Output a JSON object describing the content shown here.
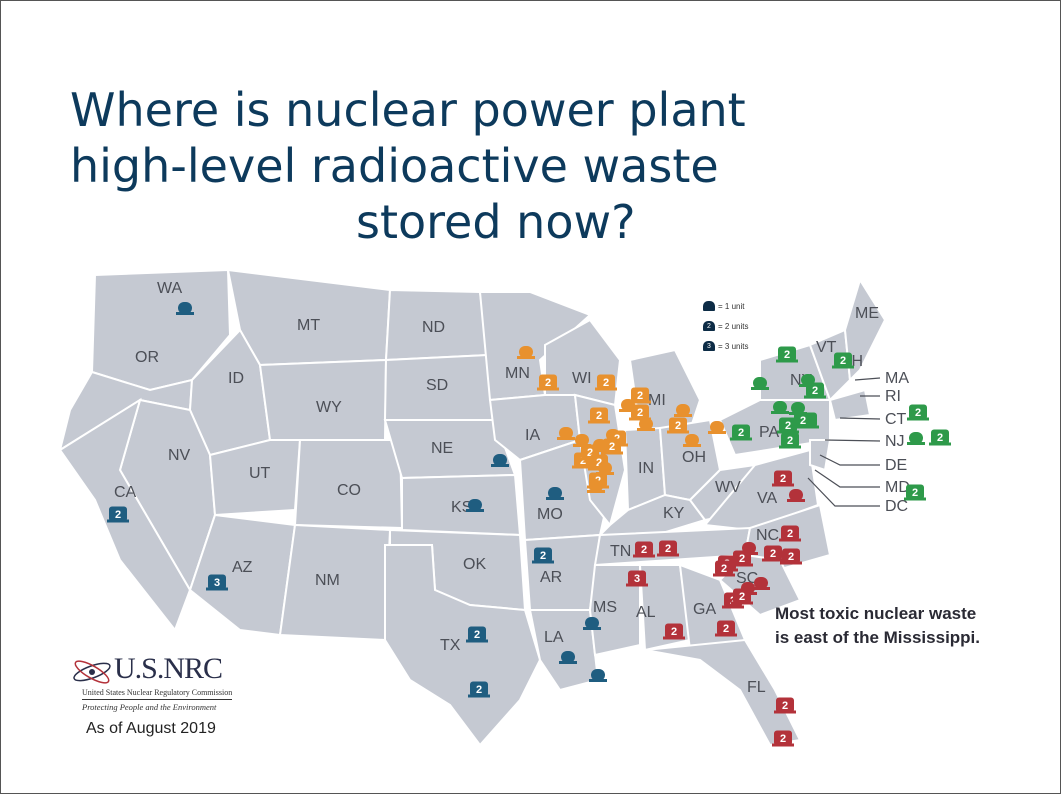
{
  "title": {
    "line1": "Where is nuclear power plant",
    "line2": "high-level radioactive waste",
    "line3": "stored now?"
  },
  "legend": {
    "one": "= 1 unit",
    "two": "= 2 units",
    "three": "= 3 units"
  },
  "note": {
    "line1": "Most toxic nuclear waste",
    "line2": "is east of the Mississippi."
  },
  "logo": {
    "name": "U.S.NRC",
    "subtitle": "United States Nuclear Regulatory Commission",
    "tagline": "Protecting People and the Environment"
  },
  "as_of": "As of August 2019",
  "colors": {
    "west": "#1f5d80",
    "midwest": "#e8912e",
    "northeast": "#2e9a4a",
    "southeast": "#b3323a",
    "land": "#c5c9d2",
    "title": "#0d3a5c"
  },
  "state_labels": [
    "WA",
    "MT",
    "ND",
    "OR",
    "ID",
    "SD",
    "MN",
    "WI",
    "MI",
    "WY",
    "IA",
    "NV",
    "NE",
    "IL",
    "IN",
    "OH",
    "UT",
    "CO",
    "CA",
    "KS",
    "MO",
    "KY",
    "WV",
    "VA",
    "TN",
    "NC",
    "SC",
    "OK",
    "AR",
    "AZ",
    "NM",
    "MS",
    "AL",
    "GA",
    "TX",
    "LA",
    "FL",
    "PA",
    "NY",
    "VT",
    "NH",
    "ME",
    "MA",
    "RI",
    "CT",
    "NJ",
    "DE",
    "MD",
    "DC"
  ],
  "sites": {
    "west": [
      "1",
      "1",
      "1",
      "2",
      "1",
      "2",
      "3",
      "2",
      "1",
      "2",
      "1",
      "1"
    ],
    "midwest": [
      "1",
      "2",
      "2",
      "1",
      "2",
      "1",
      "1",
      "2",
      "1",
      "2",
      "2",
      "2",
      "2",
      "1",
      "2",
      "2",
      "2",
      "1",
      "2",
      "1",
      "1",
      "1",
      "1",
      "1"
    ],
    "northeast": [
      "2",
      "1",
      "1",
      "2",
      "1",
      "1",
      "2",
      "2",
      "2",
      "2",
      "2",
      "2",
      "1",
      "2",
      "2",
      "2"
    ],
    "southeast": [
      "2",
      "1",
      "2",
      "2",
      "2",
      "1",
      "2",
      "2",
      "3",
      "3",
      "1",
      "1",
      "2",
      "2",
      "2",
      "2",
      "2",
      "2",
      "2",
      "2"
    ]
  }
}
